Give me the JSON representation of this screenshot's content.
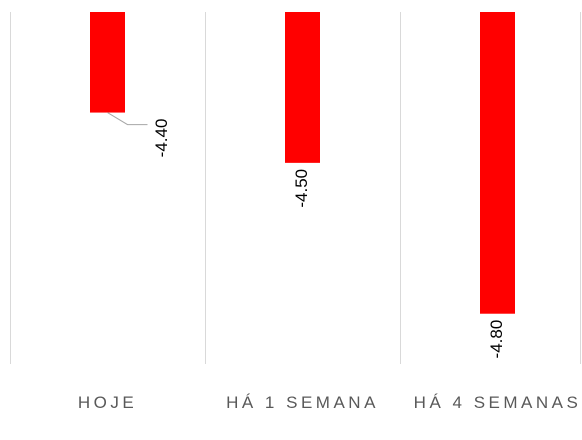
{
  "chart_data": {
    "type": "bar",
    "categories": [
      "HOJE",
      "HÁ 1 SEMANA",
      "HÁ 4 SEMANAS"
    ],
    "values": [
      -4.4,
      -4.5,
      -4.8
    ],
    "value_labels": [
      "-4.40",
      "-4.50",
      "-4.80"
    ],
    "color": "#ff0000",
    "ylim": [
      -4.9,
      -4.2
    ]
  }
}
